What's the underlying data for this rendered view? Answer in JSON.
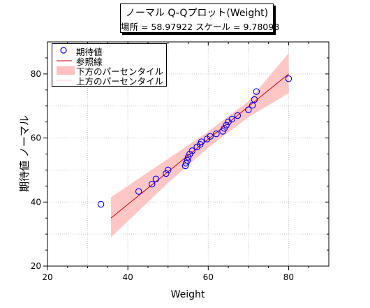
{
  "title": {
    "line1": "ノーマル Q-Qプロット(Weight)",
    "line2": "場所 = 58.97922  スケール = 9.78098"
  },
  "legend": {
    "items": [
      {
        "label": "期待値",
        "kind": "marker",
        "color": "#0000ff"
      },
      {
        "label": "参照線",
        "kind": "line",
        "color": "#cc0000"
      },
      {
        "label": "下方のパーセンタイル",
        "kind": "band",
        "color": "#ffc0c0"
      },
      {
        "label": "上方のパーセンタイル",
        "kind": "band-edge",
        "color": "#ffd8d8"
      }
    ]
  },
  "chart_data": {
    "type": "scatter",
    "title": "ノーマル Q-Qプロット(Weight)",
    "subtitle": "場所 = 58.97922  スケール = 9.78098",
    "xlabel": "Weight",
    "ylabel": "期待値 ノーマル",
    "xlim": [
      20,
      90
    ],
    "ylim": [
      20,
      90
    ],
    "xticks": [
      20,
      40,
      60,
      80
    ],
    "yticks": [
      20,
      40,
      60,
      80
    ],
    "grid": true,
    "legend_position": "top-left",
    "series": [
      {
        "name": "期待値",
        "kind": "scatter",
        "color": "#0000ff",
        "points": [
          [
            33.3,
            39.3
          ],
          [
            42.7,
            43.3
          ],
          [
            46.0,
            45.6
          ],
          [
            47.0,
            47.2
          ],
          [
            49.5,
            48.9
          ],
          [
            50.0,
            50.0
          ],
          [
            54.3,
            51.3
          ],
          [
            54.5,
            52.1
          ],
          [
            54.8,
            53.0
          ],
          [
            55.0,
            54.0
          ],
          [
            55.4,
            55.0
          ],
          [
            56.0,
            56.0
          ],
          [
            57.2,
            57.2
          ],
          [
            58.0,
            58.0
          ],
          [
            58.3,
            58.8
          ],
          [
            59.7,
            59.7
          ],
          [
            60.5,
            60.5
          ],
          [
            62.0,
            61.3
          ],
          [
            63.6,
            62.1
          ],
          [
            64.0,
            63.0
          ],
          [
            64.5,
            64.0
          ],
          [
            65.0,
            65.0
          ],
          [
            65.9,
            65.9
          ],
          [
            67.3,
            67.0
          ],
          [
            70.0,
            68.8
          ],
          [
            71.0,
            70.2
          ],
          [
            71.5,
            72.0
          ],
          [
            72.0,
            74.5
          ],
          [
            80.0,
            78.5
          ]
        ]
      },
      {
        "name": "参照線",
        "kind": "line",
        "color": "#cc0000",
        "points": [
          [
            35.8,
            35.0
          ],
          [
            80.0,
            80.0
          ]
        ]
      },
      {
        "name": "下方のパーセンタイル",
        "kind": "band-lower",
        "color": "#ffc0c0",
        "points": [
          [
            35.8,
            29.0
          ],
          [
            50.0,
            46.0
          ],
          [
            60.0,
            57.0
          ],
          [
            70.0,
            66.5
          ],
          [
            80.0,
            74.0
          ]
        ]
      },
      {
        "name": "上方のパーセンタイル",
        "kind": "band-upper",
        "color": "#ffc0c0",
        "points": [
          [
            35.8,
            41.5
          ],
          [
            50.0,
            53.5
          ],
          [
            60.0,
            62.0
          ],
          [
            70.0,
            71.5
          ],
          [
            80.0,
            86.5
          ]
        ]
      }
    ]
  }
}
